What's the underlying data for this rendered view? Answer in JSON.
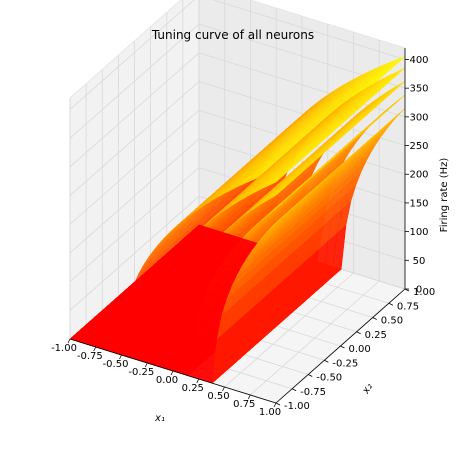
{
  "chart_data": {
    "type": "surface3d",
    "title": "Tuning curve of all neurons",
    "xlabel": "x₁",
    "ylabel": "x₂",
    "zlabel": "Firing rate (Hz)",
    "xlim": [
      -1,
      1
    ],
    "ylim": [
      -1,
      1
    ],
    "zlim": [
      0,
      420
    ],
    "x_ticks": [
      "-1.00",
      "-0.75",
      "-0.50",
      "-0.25",
      "0.00",
      "0.25",
      "0.50",
      "0.75",
      "1.00"
    ],
    "y_ticks": [
      "-1.00",
      "-0.75",
      "-0.50",
      "-0.25",
      "0.00",
      "0.25",
      "0.50",
      "0.75",
      "1.00"
    ],
    "z_ticks": [
      "0",
      "50",
      "100",
      "150",
      "200",
      "250",
      "300",
      "350",
      "400"
    ],
    "grid": true,
    "colormap": [
      "#ff0000",
      "#ffff00"
    ],
    "series": [
      {
        "threshold_x1": -0.5,
        "max_rate": 405
      },
      {
        "threshold_x1": -0.28,
        "max_rate": 385
      },
      {
        "threshold_x1": -0.05,
        "max_rate": 362
      },
      {
        "threshold_x1": 0.18,
        "max_rate": 338
      },
      {
        "threshold_x1": 0.4,
        "max_rate": 315
      }
    ]
  }
}
